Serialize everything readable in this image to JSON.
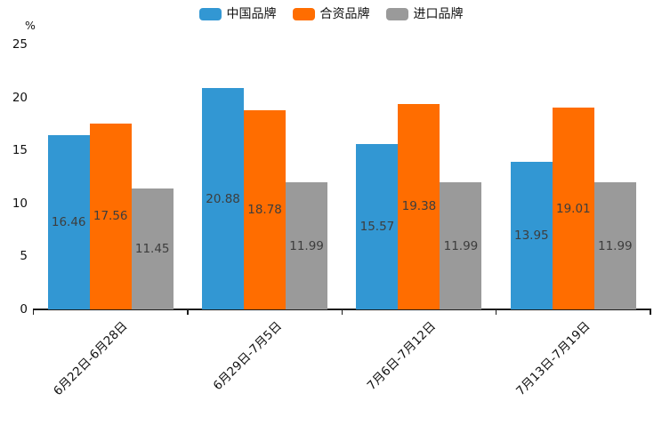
{
  "chart_data": {
    "type": "bar",
    "title": "",
    "unit_label": "%",
    "categories": [
      "6月22日-6月28日",
      "6月29日-7月5日",
      "7月6日-7月12日",
      "7月13日-7月19日"
    ],
    "series": [
      {
        "name": "中国品牌",
        "color": "#3297D3",
        "values": [
          16.46,
          20.88,
          15.57,
          13.95
        ]
      },
      {
        "name": "合资品牌",
        "color": "#FF6D00",
        "values": [
          17.56,
          18.78,
          19.38,
          19.01
        ]
      },
      {
        "name": "进口品牌",
        "color": "#9A9A9A",
        "values": [
          11.45,
          11.99,
          11.99,
          11.99
        ]
      }
    ],
    "y_axis": {
      "min": 0,
      "max": 25,
      "tick_interval": 5,
      "ticks": [
        0,
        5,
        10,
        15,
        20,
        25
      ]
    },
    "legend_position": "top-center",
    "grid": false,
    "value_labels": "inside-middle",
    "axis_color": "#1c1c1c",
    "value_label_color": "#3d3d3d"
  }
}
